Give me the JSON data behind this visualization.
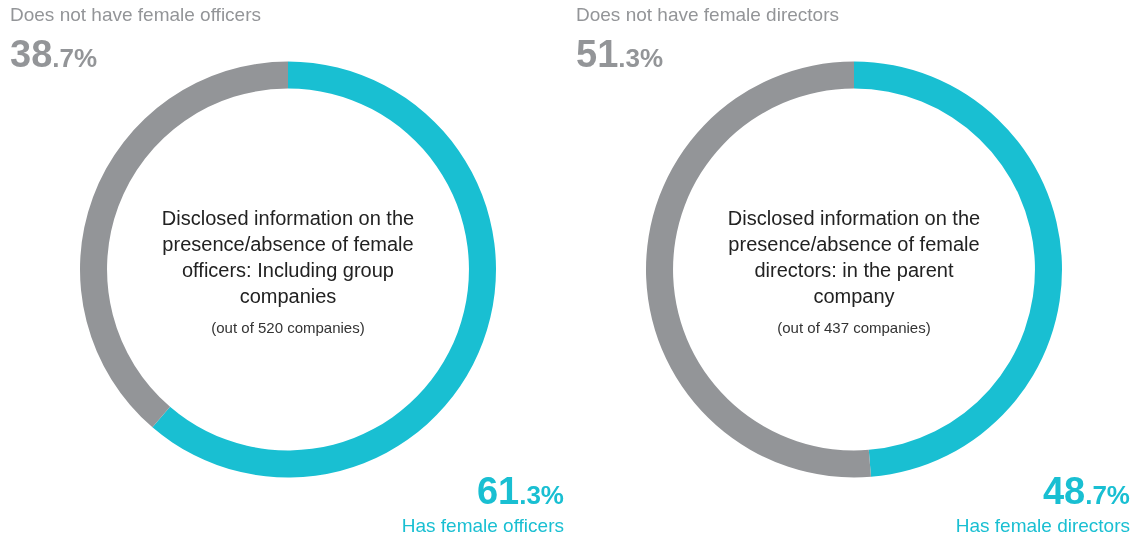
{
  "chart_data": [
    {
      "type": "donut",
      "title": "Disclosed information on the presence/absence of female officers: Including group companies",
      "subtitle": "(out of 520 companies)",
      "categories": [
        "Has female officers",
        "Does not have female officers"
      ],
      "values": [
        61.3,
        38.7
      ],
      "colors": [
        "#19bfd2",
        "#939598"
      ],
      "value_labels": [
        "61.3%",
        "38.7%"
      ]
    },
    {
      "type": "donut",
      "title": "Disclosed information on the presence/absence of female directors: in the parent company",
      "subtitle": "(out of 437 companies)",
      "categories": [
        "Has female directors",
        "Does not have female directors"
      ],
      "values": [
        48.7,
        51.3
      ],
      "colors": [
        "#19bfd2",
        "#939598"
      ],
      "value_labels": [
        "48.7%",
        "51.3%"
      ]
    }
  ]
}
